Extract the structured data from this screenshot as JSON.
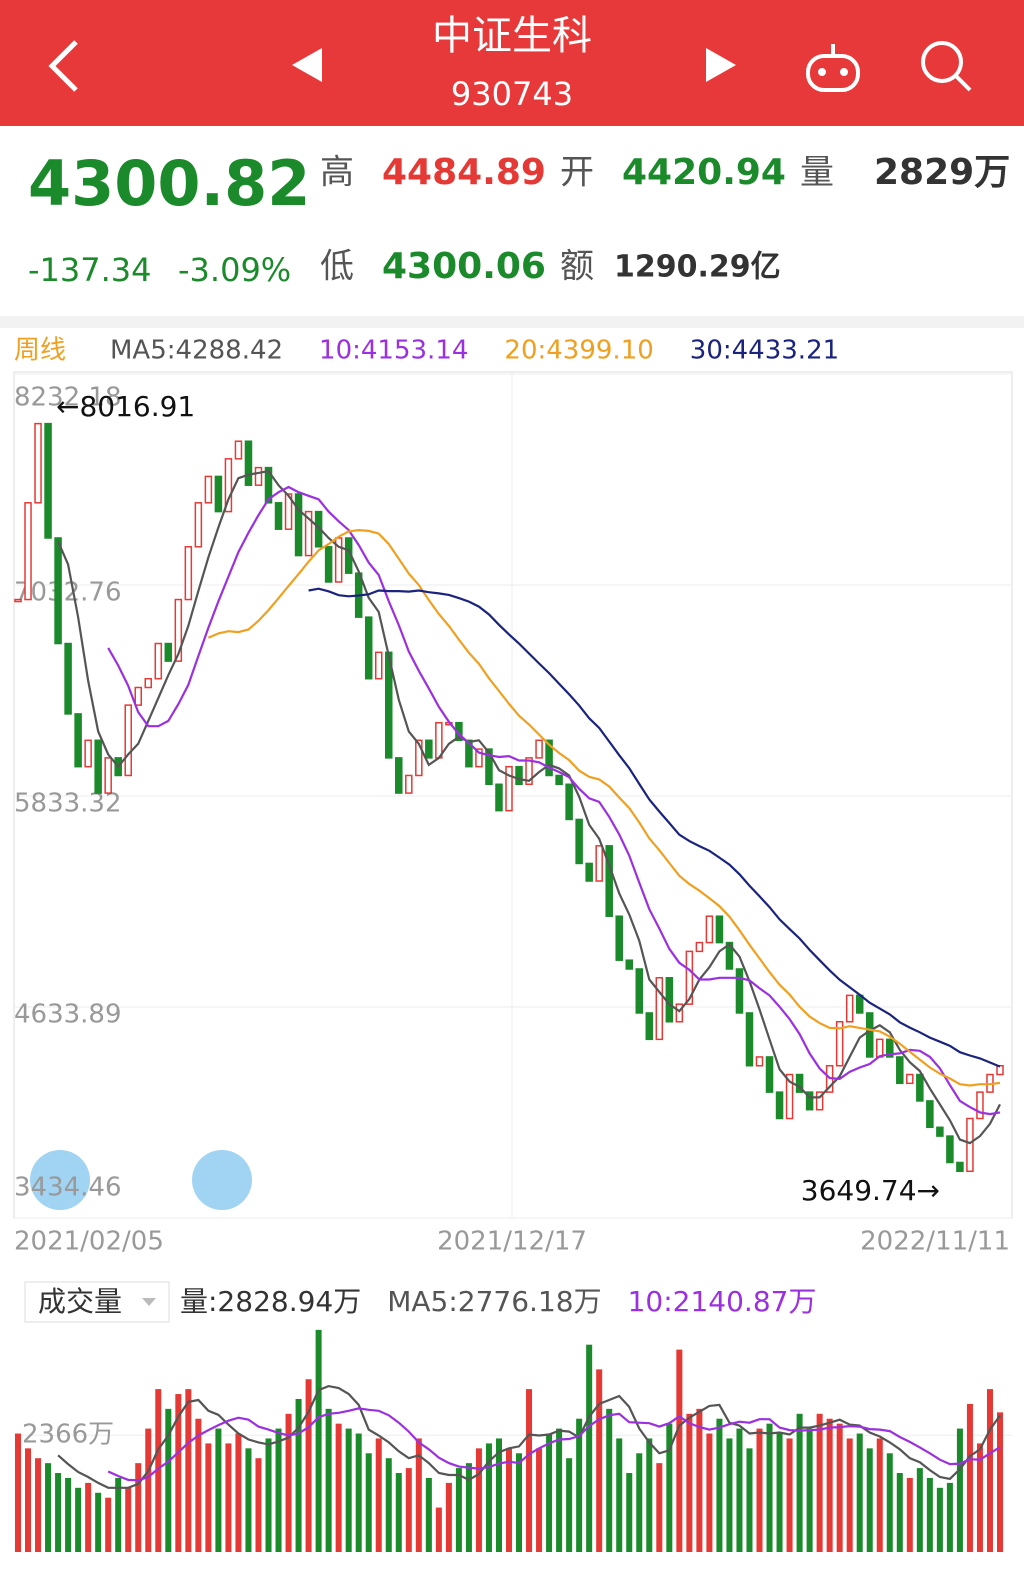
{
  "header": {
    "title": "中证生科",
    "code": "930743"
  },
  "quote": {
    "price": "4300.82",
    "change": "-137.34",
    "change_pct": "-3.09%",
    "high_label": "高",
    "high": "4484.89",
    "open_label": "开",
    "open": "4420.94",
    "volume_label": "量",
    "volume": "2829万",
    "low_label": "低",
    "low": "4300.06",
    "amount_label": "额",
    "amount": "1290.29亿"
  },
  "chart_data": {
    "type": "candlestick",
    "period": "周线",
    "ma_labels": [
      {
        "text": "MA5:4288.42",
        "color": "#555555",
        "window": 5
      },
      {
        "text": "10:4153.14",
        "color": "#9b30e0",
        "window": 10
      },
      {
        "text": "20:4399.10",
        "color": "#f0a020",
        "window": 20
      },
      {
        "text": "30:4433.21",
        "color": "#1a237e",
        "window": 30
      }
    ],
    "annotations": [
      "←8016.91",
      "3649.74→"
    ],
    "x_labels": [
      "2021/02/05",
      "2021/12/17",
      "2022/11/11"
    ],
    "up_color": "#e53935",
    "down_color": "#1a8a2a",
    "ylim": [
      3434.46,
      8232.18
    ],
    "yticks": [
      8232.18,
      7032.76,
      5833.32,
      4633.89,
      3434.46
    ],
    "close": [
      6950,
      7500,
      7950,
      7300,
      6700,
      6300,
      6000,
      6150,
      5850,
      6050,
      5950,
      6350,
      6450,
      6500,
      6700,
      6600,
      6950,
      7250,
      7500,
      7650,
      7450,
      7750,
      7850,
      7600,
      7700,
      7500,
      7350,
      7550,
      7200,
      7450,
      7250,
      7050,
      7300,
      7100,
      6850,
      6500,
      6650,
      6050,
      5850,
      5950,
      6150,
      6050,
      6250,
      6250,
      6150,
      6000,
      6100,
      5900,
      5750,
      6000,
      5900,
      6050,
      6150,
      5950,
      5900,
      5700,
      5450,
      5350,
      5550,
      5150,
      4900,
      4850,
      4600,
      4450,
      4800,
      4550,
      4650,
      4950,
      5000,
      5150,
      5000,
      4850,
      4600,
      4300,
      4350,
      4150,
      4000,
      4250,
      4150,
      4050,
      4150,
      4300,
      4550,
      4700,
      4600,
      4350,
      4450,
      4350,
      4200,
      4250,
      4100,
      3950,
      3900,
      3750,
      3700,
      4000,
      4150,
      4250,
      4300
    ],
    "volume": {
      "title": "成交量",
      "labels": [
        {
          "text": "量:2828.94万",
          "color": "#333333",
          "window": 0
        },
        {
          "text": "MA5:2776.18万",
          "color": "#555555",
          "window": 5
        },
        {
          "text": "10:2140.87万",
          "color": "#9b30e0",
          "window": 10
        }
      ],
      "vlim": [
        0,
        4700
      ],
      "vticks": [
        {
          "value": 2366,
          "label": "2366万"
        }
      ],
      "values": [
        2400,
        2100,
        1900,
        1800,
        1600,
        1500,
        1300,
        1400,
        1200,
        1100,
        1500,
        1300,
        1800,
        2500,
        3300,
        2900,
        3200,
        3300,
        2700,
        2200,
        2500,
        2200,
        2400,
        2100,
        1900,
        2300,
        2500,
        2800,
        3100,
        3500,
        4500,
        2900,
        2600,
        2500,
        2400,
        2000,
        2300,
        1900,
        1600,
        1700,
        2300,
        1500,
        900,
        1400,
        1700,
        1800,
        2100,
        2200,
        2300,
        2100,
        2000,
        3300,
        2100,
        2400,
        2500,
        1900,
        2700,
        4200,
        3700,
        2900,
        2300,
        1600,
        2000,
        2300,
        1800,
        2600,
        4100,
        2800,
        2900,
        2400,
        2700,
        2300,
        2500,
        2100,
        2500,
        2600,
        2400,
        2300,
        2800,
        2500,
        2800,
        2700,
        2600,
        2300,
        2400,
        2100,
        2300,
        2000,
        1600,
        1500,
        1700,
        1500,
        1300,
        1400,
        2500,
        3000,
        2200,
        3300,
        2829
      ]
    }
  }
}
